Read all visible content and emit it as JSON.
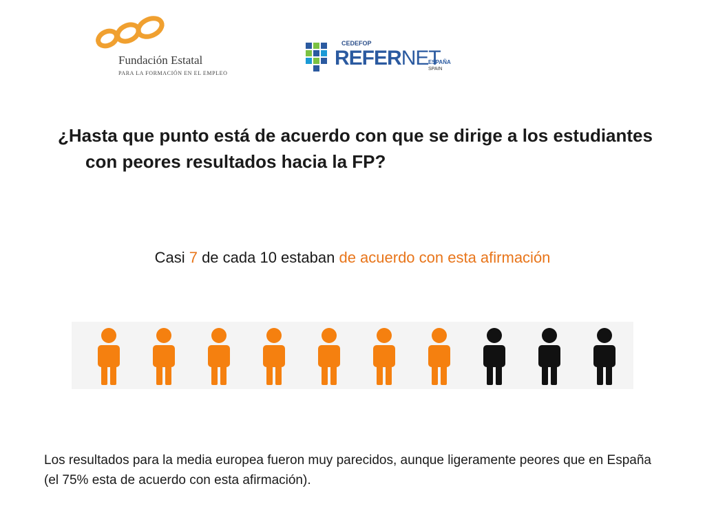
{
  "logos": {
    "fundacion": {
      "name": "Fundación Estatal",
      "subtitle": "PARA LA FORMACIÓN EN EL EMPLEO",
      "color": "#f0a030"
    },
    "refernet": {
      "cedefop": "CEDEFOP",
      "refer": "REFER",
      "net": "NET",
      "espana": "ESPAÑA",
      "spain": "SPAIN",
      "color": "#2b5aa0"
    }
  },
  "title": "¿Hasta que punto está de acuerdo con que se dirige a los estudiantes con peores resultados hacia la FP?",
  "subtitle": {
    "prefix": "Casi ",
    "highlight_number": "7",
    "middle": " de cada 10 estaban ",
    "highlight_text": "de acuerdo con esta afirmación"
  },
  "people": {
    "total": 10,
    "agree": 7,
    "agree_color": "#f5800f",
    "disagree_color": "#111111"
  },
  "footer": "Los resultados para la media europea fueron muy parecidos, aunque ligeramente peores que en España (el 75% esta de acuerdo con esta afirmación)."
}
